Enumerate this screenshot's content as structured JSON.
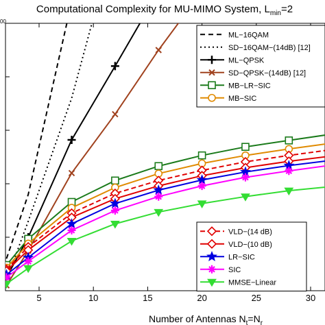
{
  "chart_data": {
    "type": "line",
    "title": "Computational Complexity for MU-MIMO System, L",
    "title_subscript": "min",
    "title_suffix": "=2",
    "xlabel_main": "Number of Antennas  N",
    "xlabel_sub1": "t",
    "xlabel_eq": "=N",
    "xlabel_sub2": "r",
    "ylabel": "",
    "xlim": [
      2,
      32
    ],
    "ylim": [
      0,
      5
    ],
    "xticks": [
      5,
      10,
      15,
      20,
      25,
      30
    ],
    "xtick_labels": [
      "5",
      "10",
      "15",
      "20",
      "25",
      "30"
    ],
    "y_top_label": "00",
    "grid": false,
    "legend_upper": [
      {
        "key": "ml16",
        "label": "ML−16QAM"
      },
      {
        "key": "sd16",
        "label": "SD−16QAM−(14dB)  [12]"
      },
      {
        "key": "mlqpsk",
        "label": "ML−QPSK"
      },
      {
        "key": "sdqpsk",
        "label": "SD−QPSK−(14dB)  [12]"
      },
      {
        "key": "mblr",
        "label": "MB−LR−SIC"
      },
      {
        "key": "mbsic",
        "label": "MB−SIC"
      }
    ],
    "legend_lower": [
      {
        "key": "vld14",
        "label": "VLD−(14 dB)"
      },
      {
        "key": "vld10",
        "label": "VLD−(10 dB)"
      },
      {
        "key": "lrsic",
        "label": "LR−SIC"
      },
      {
        "key": "sic",
        "label": "SIC"
      },
      {
        "key": "mmse",
        "label": "MMSE−Linear"
      }
    ],
    "series": [
      {
        "key": "ml16",
        "name": "ML−16QAM",
        "color": "#000000",
        "dash": "7,5",
        "marker": "none",
        "width": 2,
        "x": [
          2,
          4,
          8
        ],
        "y": [
          0.6,
          1.8,
          5.4
        ]
      },
      {
        "key": "sd16",
        "name": "SD−16QAM−(14dB)  [12]",
        "color": "#000000",
        "dash": "2,4",
        "marker": "none",
        "width": 2,
        "x": [
          2,
          4,
          8,
          10
        ],
        "y": [
          0.2,
          1.3,
          3.6,
          5.1
        ]
      },
      {
        "key": "mlqpsk",
        "name": "ML−QPSK",
        "color": "#000000",
        "dash": "",
        "marker": "plus",
        "width": 2,
        "x": [
          2,
          4,
          8,
          12,
          16
        ],
        "y": [
          0.25,
          1.0,
          2.82,
          4.2,
          5.6
        ]
      },
      {
        "key": "sdqpsk",
        "name": "SD−QPSK−(14dB)  [12]",
        "color": "#a0421e",
        "dash": "",
        "marker": "x",
        "width": 2,
        "x": [
          2,
          4,
          8,
          12,
          16,
          20
        ],
        "y": [
          0.1,
          0.75,
          2.2,
          3.3,
          4.5,
          5.6
        ]
      },
      {
        "key": "mblr",
        "name": "MB−LR−SIC",
        "color": "#1a7a1a",
        "dash": "",
        "marker": "square",
        "width": 2,
        "x": [
          2,
          4,
          8,
          12,
          16,
          20,
          24,
          28,
          32
        ],
        "y": [
          0.48,
          0.97,
          1.66,
          2.06,
          2.33,
          2.53,
          2.69,
          2.81,
          2.93
        ]
      },
      {
        "key": "mbsic",
        "name": "MB−SIC",
        "color": "#e08a00",
        "dash": "",
        "marker": "circle",
        "width": 2,
        "x": [
          2,
          4,
          8,
          12,
          16,
          20,
          24,
          28,
          32
        ],
        "y": [
          0.43,
          0.88,
          1.55,
          1.93,
          2.19,
          2.38,
          2.53,
          2.65,
          2.76
        ]
      },
      {
        "key": "vld14",
        "name": "VLD−(14 dB)",
        "color": "#e00000",
        "dash": "7,4",
        "marker": "diamond",
        "width": 2,
        "x": [
          2,
          4,
          8,
          12,
          16,
          20,
          24,
          28,
          32
        ],
        "y": [
          0.4,
          0.82,
          1.45,
          1.82,
          2.06,
          2.25,
          2.41,
          2.53,
          2.64
        ]
      },
      {
        "key": "vld10",
        "name": "VLD−(10 dB)",
        "color": "#e00000",
        "dash": "",
        "marker": "diamond",
        "width": 2,
        "x": [
          2,
          4,
          8,
          12,
          16,
          20,
          24,
          28,
          32
        ],
        "y": [
          0.37,
          0.76,
          1.37,
          1.72,
          1.96,
          2.15,
          2.3,
          2.42,
          2.52
        ]
      },
      {
        "key": "lrsic",
        "name": "LR−SIC",
        "color": "#0000e0",
        "dash": "",
        "marker": "star",
        "width": 2,
        "x": [
          2,
          4,
          8,
          12,
          16,
          20,
          24,
          28,
          32
        ],
        "y": [
          0.3,
          0.62,
          1.25,
          1.63,
          1.88,
          2.07,
          2.22,
          2.34,
          2.44
        ]
      },
      {
        "key": "sic",
        "name": "SIC",
        "color": "#ff00ff",
        "dash": "",
        "marker": "asterisk",
        "width": 2,
        "x": [
          2,
          4,
          8,
          12,
          16,
          20,
          24,
          28,
          32
        ],
        "y": [
          0.25,
          0.55,
          1.13,
          1.5,
          1.76,
          1.96,
          2.12,
          2.24,
          2.35
        ]
      },
      {
        "key": "mmse",
        "name": "MMSE−Linear",
        "color": "#33dd33",
        "dash": "",
        "marker": "triangle",
        "width": 2,
        "x": [
          2,
          4,
          8,
          12,
          16,
          20,
          24,
          28,
          32
        ],
        "y": [
          0.13,
          0.42,
          0.93,
          1.25,
          1.47,
          1.63,
          1.76,
          1.87,
          1.95
        ]
      }
    ]
  }
}
